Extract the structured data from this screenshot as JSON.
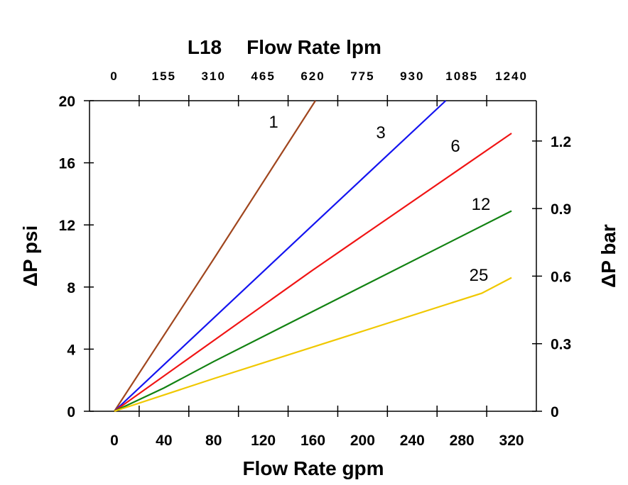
{
  "chart_data": {
    "type": "line",
    "title": "L18",
    "xlabel": "Flow Rate gpm",
    "x2label": "Flow Rate lpm",
    "ylabel": "ΔP psi",
    "y2label": "ΔP bar",
    "xlim": [
      -20,
      340
    ],
    "ylim": [
      0,
      20
    ],
    "y2lim": [
      0,
      1.379
    ],
    "x_ticks": [
      0,
      40,
      80,
      120,
      160,
      200,
      240,
      280,
      320
    ],
    "x_tick_labels": [
      "0",
      "40",
      "80",
      "120",
      "160",
      "200",
      "240",
      "280",
      "320"
    ],
    "x2_tick_labels": [
      "0",
      "155",
      "310",
      "465",
      "620",
      "775",
      "930",
      "1085",
      "1240"
    ],
    "y_ticks": [
      0,
      4,
      8,
      12,
      16,
      20
    ],
    "y_tick_labels": [
      "0",
      "4",
      "8",
      "12",
      "16",
      "20"
    ],
    "y2_ticks": [
      0,
      0.3,
      0.6,
      0.9,
      1.2
    ],
    "y2_tick_labels": [
      "0",
      "0.3",
      "0.6",
      "0.9",
      "1.2"
    ],
    "grid": false,
    "series": [
      {
        "name": "1",
        "color": "#a0461e",
        "points": [
          [
            0,
            0
          ],
          [
            80,
            9.8
          ],
          [
            162,
            20
          ]
        ]
      },
      {
        "name": "3",
        "color": "#1414f0",
        "points": [
          [
            0,
            0
          ],
          [
            160,
            12
          ],
          [
            267,
            20
          ]
        ]
      },
      {
        "name": "6",
        "color": "#f01414",
        "points": [
          [
            0,
            0
          ],
          [
            160,
            9.1
          ],
          [
            320,
            17.9
          ]
        ]
      },
      {
        "name": "12",
        "color": "#128212",
        "points": [
          [
            0,
            0
          ],
          [
            40,
            1.5
          ],
          [
            80,
            3.2
          ],
          [
            320,
            12.9
          ]
        ]
      },
      {
        "name": "25",
        "color": "#f0c800",
        "points": [
          [
            0,
            0
          ],
          [
            80,
            2.1
          ],
          [
            296,
            7.6
          ],
          [
            320,
            8.6
          ]
        ]
      }
    ]
  }
}
